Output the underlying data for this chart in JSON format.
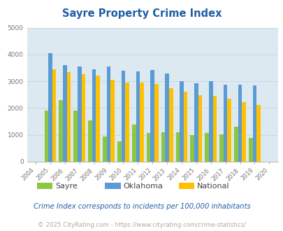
{
  "title": "Sayre Property Crime Index",
  "years": [
    2004,
    2005,
    2006,
    2007,
    2008,
    2009,
    2010,
    2011,
    2012,
    2013,
    2014,
    2015,
    2016,
    2017,
    2018,
    2019,
    2020
  ],
  "sayre": [
    0,
    1900,
    2300,
    1900,
    1550,
    950,
    770,
    1380,
    1080,
    1100,
    1100,
    1000,
    1060,
    1010,
    1300,
    900,
    0
  ],
  "oklahoma": [
    0,
    4050,
    3600,
    3540,
    3450,
    3560,
    3400,
    3360,
    3420,
    3300,
    3010,
    2920,
    3010,
    2870,
    2880,
    2840,
    0
  ],
  "national": [
    0,
    3440,
    3350,
    3260,
    3220,
    3060,
    2960,
    2940,
    2890,
    2740,
    2620,
    2490,
    2460,
    2360,
    2210,
    2120,
    0
  ],
  "sayre_color": "#8dc63f",
  "oklahoma_color": "#5b9bd5",
  "national_color": "#ffc000",
  "plot_bg": "#dce9f0",
  "fig_bg": "#ffffff",
  "ylim": [
    0,
    5000
  ],
  "yticks": [
    0,
    1000,
    2000,
    3000,
    4000,
    5000
  ],
  "legend_labels": [
    "Sayre",
    "Oklahoma",
    "National"
  ],
  "subtitle": "Crime Index corresponds to incidents per 100,000 inhabitants",
  "footer": "© 2025 CityRating.com - https://www.cityrating.com/crime-statistics/",
  "title_color": "#1f5fa6",
  "subtitle_color": "#1f5fa6",
  "footer_color": "#aaaaaa",
  "grid_color": "#c5d9e8",
  "tick_label_color": "#777777",
  "bar_width": 0.27
}
